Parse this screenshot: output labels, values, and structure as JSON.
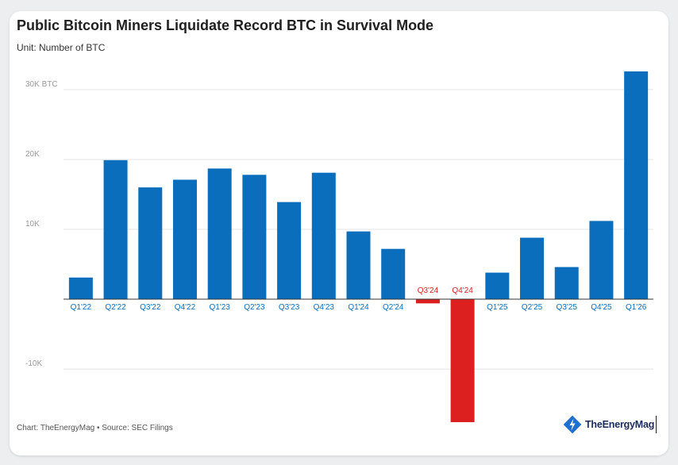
{
  "title": "Public Bitcoin Miners Liquidate Record BTC in Survival Mode",
  "subtitle": "Unit: Number of BTC",
  "footer": "Chart: TheEnergyMag • Source: SEC Filings",
  "logo": {
    "text": "TheEnergyMag",
    "icon": "bolt-diamond-icon",
    "color": "#1f6fd1"
  },
  "colors": {
    "positive": "#0a6ebd",
    "negative": "#dc2020",
    "grid": "#e3e3e3",
    "axis_label": "#9a9a9a"
  },
  "chart_data": {
    "type": "bar",
    "categories": [
      "Q1'22",
      "Q2'22",
      "Q3'22",
      "Q4'22",
      "Q1'23",
      "Q2'23",
      "Q3'23",
      "Q4'23",
      "Q1'24",
      "Q2'24",
      "Q3'24",
      "Q4'24",
      "Q1'25",
      "Q2'25",
      "Q3'25",
      "Q4'25",
      "Q1'26"
    ],
    "values": [
      3100,
      19900,
      16000,
      17100,
      18700,
      17800,
      13900,
      18100,
      9700,
      7200,
      -600,
      -17600,
      3800,
      8800,
      4600,
      11200,
      32600
    ],
    "ylim": [
      -17600,
      32600
    ],
    "yticks": [
      -10000,
      10000,
      20000,
      30000
    ],
    "ytick_labels": [
      "-10K",
      "10K",
      "20K",
      "30K BTC"
    ],
    "grid": true,
    "xlabel": "",
    "ylabel": ""
  }
}
